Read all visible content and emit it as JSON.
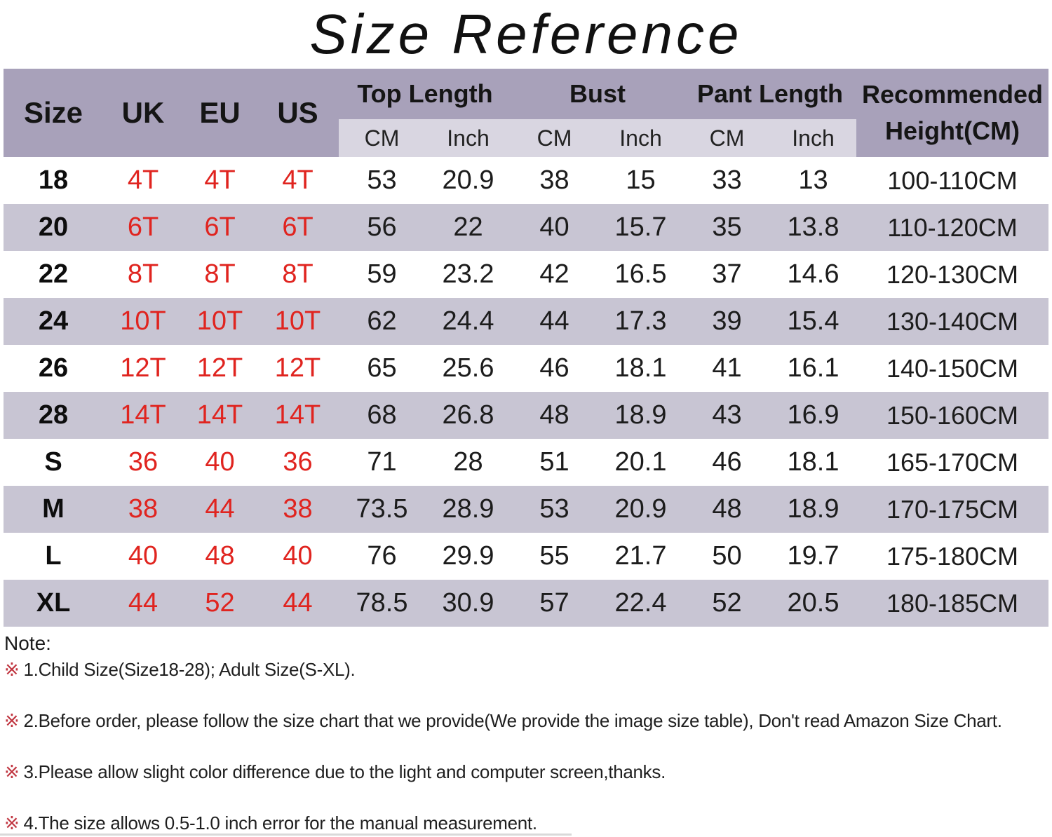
{
  "title": "Size Reference",
  "colors": {
    "header_bg": "#a8a1ba",
    "subheader_bg": "#d9d6e1",
    "row_alt_bg": "#c8c5d3",
    "accent_red": "#e0241f",
    "note_marker_red": "#c03540"
  },
  "chart_data": {
    "type": "table",
    "title": "Size Reference",
    "column_groups": [
      {
        "label": "Size"
      },
      {
        "label": "UK"
      },
      {
        "label": "EU"
      },
      {
        "label": "US"
      },
      {
        "label": "Top Length",
        "sub": [
          "CM",
          "Inch"
        ]
      },
      {
        "label": "Bust",
        "sub": [
          "CM",
          "Inch"
        ]
      },
      {
        "label": "Pant Length",
        "sub": [
          "CM",
          "Inch"
        ]
      },
      {
        "label": "Recommended Height(CM)"
      }
    ],
    "columns": [
      "Size",
      "UK",
      "EU",
      "US",
      "Top Length CM",
      "Top Length Inch",
      "Bust CM",
      "Bust Inch",
      "Pant Length CM",
      "Pant Length Inch",
      "Recommended Height(CM)"
    ],
    "rows": [
      [
        "18",
        "4T",
        "4T",
        "4T",
        "53",
        "20.9",
        "38",
        "15",
        "33",
        "13",
        "100-110CM"
      ],
      [
        "20",
        "6T",
        "6T",
        "6T",
        "56",
        "22",
        "40",
        "15.7",
        "35",
        "13.8",
        "110-120CM"
      ],
      [
        "22",
        "8T",
        "8T",
        "8T",
        "59",
        "23.2",
        "42",
        "16.5",
        "37",
        "14.6",
        "120-130CM"
      ],
      [
        "24",
        "10T",
        "10T",
        "10T",
        "62",
        "24.4",
        "44",
        "17.3",
        "39",
        "15.4",
        "130-140CM"
      ],
      [
        "26",
        "12T",
        "12T",
        "12T",
        "65",
        "25.6",
        "46",
        "18.1",
        "41",
        "16.1",
        "140-150CM"
      ],
      [
        "28",
        "14T",
        "14T",
        "14T",
        "68",
        "26.8",
        "48",
        "18.9",
        "43",
        "16.9",
        "150-160CM"
      ],
      [
        "S",
        "36",
        "40",
        "36",
        "71",
        "28",
        "51",
        "20.1",
        "46",
        "18.1",
        "165-170CM"
      ],
      [
        "M",
        "38",
        "44",
        "38",
        "73.5",
        "28.9",
        "53",
        "20.9",
        "48",
        "18.9",
        "170-175CM"
      ],
      [
        "L",
        "40",
        "48",
        "40",
        "76",
        "29.9",
        "55",
        "21.7",
        "50",
        "19.7",
        "175-180CM"
      ],
      [
        "XL",
        "44",
        "52",
        "44",
        "78.5",
        "30.9",
        "57",
        "22.4",
        "52",
        "20.5",
        "180-185CM"
      ]
    ]
  },
  "notes": {
    "label": "Note:",
    "items": [
      {
        "marker": "※",
        "text": "1.Child Size(Size18-28); Adult Size(S-XL)."
      },
      {
        "marker": "※",
        "text": "2.Before order, please follow the size chart that we provide(We provide the image size table), Don't read Amazon Size Chart."
      },
      {
        "marker": "※",
        "text": "3.Please allow slight color difference due to the light and computer screen,thanks."
      },
      {
        "marker": "※",
        "text": "4.The size allows 0.5-1.0 inch error for the manual measurement."
      }
    ]
  }
}
